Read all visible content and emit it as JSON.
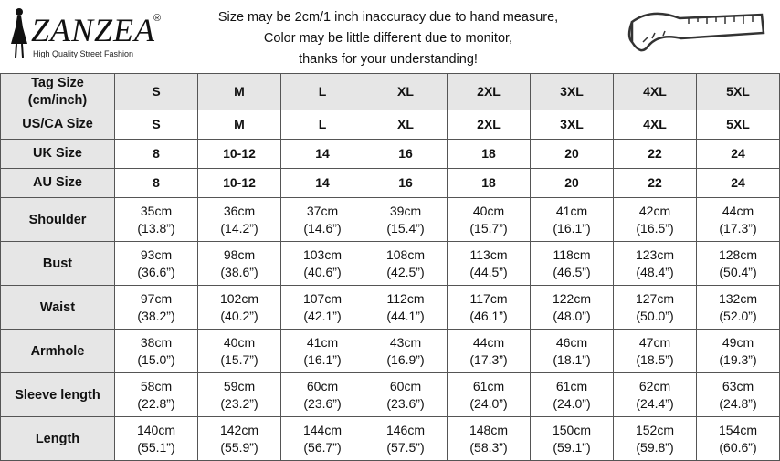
{
  "header": {
    "logo": {
      "brand": "ZANZEA",
      "mark": "®",
      "tagline": "High Quality Street Fashion"
    },
    "notes": [
      "Size may be 2cm/1 inch inaccuracy due to hand measure,",
      "Color may be little different due to monitor,",
      "thanks for your understanding!"
    ]
  },
  "table": {
    "size_rows": [
      {
        "label": [
          "Tag Size",
          "(cm/inch)"
        ],
        "cells": [
          "S",
          "M",
          "L",
          "XL",
          "2XL",
          "3XL",
          "4XL",
          "5XL"
        ]
      },
      {
        "label": [
          "US/CA Size"
        ],
        "cells": [
          "S",
          "M",
          "L",
          "XL",
          "2XL",
          "3XL",
          "4XL",
          "5XL"
        ]
      },
      {
        "label": [
          "UK Size"
        ],
        "cells": [
          "8",
          "10-12",
          "14",
          "16",
          "18",
          "20",
          "22",
          "24"
        ]
      },
      {
        "label": [
          "AU Size"
        ],
        "cells": [
          "8",
          "10-12",
          "14",
          "16",
          "18",
          "20",
          "22",
          "24"
        ]
      }
    ],
    "measure_rows": [
      {
        "label": "Shoulder",
        "cells": [
          [
            "35cm",
            "(13.8”)"
          ],
          [
            "36cm",
            "(14.2”)"
          ],
          [
            "37cm",
            "(14.6”)"
          ],
          [
            "39cm",
            "(15.4”)"
          ],
          [
            "40cm",
            "(15.7”)"
          ],
          [
            "41cm",
            "(16.1”)"
          ],
          [
            "42cm",
            "(16.5”)"
          ],
          [
            "44cm",
            "(17.3”)"
          ]
        ]
      },
      {
        "label": "Bust",
        "cells": [
          [
            "93cm",
            "(36.6”)"
          ],
          [
            "98cm",
            "(38.6”)"
          ],
          [
            "103cm",
            "(40.6”)"
          ],
          [
            "108cm",
            "(42.5”)"
          ],
          [
            "113cm",
            "(44.5”)"
          ],
          [
            "118cm",
            "(46.5”)"
          ],
          [
            "123cm",
            "(48.4”)"
          ],
          [
            "128cm",
            "(50.4”)"
          ]
        ]
      },
      {
        "label": "Waist",
        "cells": [
          [
            "97cm",
            "(38.2”)"
          ],
          [
            "102cm",
            "(40.2”)"
          ],
          [
            "107cm",
            "(42.1”)"
          ],
          [
            "112cm",
            "(44.1”)"
          ],
          [
            "117cm",
            "(46.1”)"
          ],
          [
            "122cm",
            "(48.0”)"
          ],
          [
            "127cm",
            "(50.0”)"
          ],
          [
            "132cm",
            "(52.0”)"
          ]
        ]
      },
      {
        "label": "Armhole",
        "cells": [
          [
            "38cm",
            "(15.0”)"
          ],
          [
            "40cm",
            "(15.7”)"
          ],
          [
            "41cm",
            "(16.1”)"
          ],
          [
            "43cm",
            "(16.9”)"
          ],
          [
            "44cm",
            "(17.3”)"
          ],
          [
            "46cm",
            "(18.1”)"
          ],
          [
            "47cm",
            "(18.5”)"
          ],
          [
            "49cm",
            "(19.3”)"
          ]
        ]
      },
      {
        "label": "Sleeve length",
        "cells": [
          [
            "58cm",
            "(22.8”)"
          ],
          [
            "59cm",
            "(23.2”)"
          ],
          [
            "60cm",
            "(23.6”)"
          ],
          [
            "60cm",
            "(23.6”)"
          ],
          [
            "61cm",
            "(24.0”)"
          ],
          [
            "61cm",
            "(24.0”)"
          ],
          [
            "62cm",
            "(24.4”)"
          ],
          [
            "63cm",
            "(24.8”)"
          ]
        ]
      },
      {
        "label": "Length",
        "cells": [
          [
            "140cm",
            "(55.1”)"
          ],
          [
            "142cm",
            "(55.9”)"
          ],
          [
            "144cm",
            "(56.7”)"
          ],
          [
            "146cm",
            "(57.5”)"
          ],
          [
            "148cm",
            "(58.3”)"
          ],
          [
            "150cm",
            "(59.1”)"
          ],
          [
            "152cm",
            "(59.8”)"
          ],
          [
            "154cm",
            "(60.6”)"
          ]
        ]
      }
    ]
  }
}
